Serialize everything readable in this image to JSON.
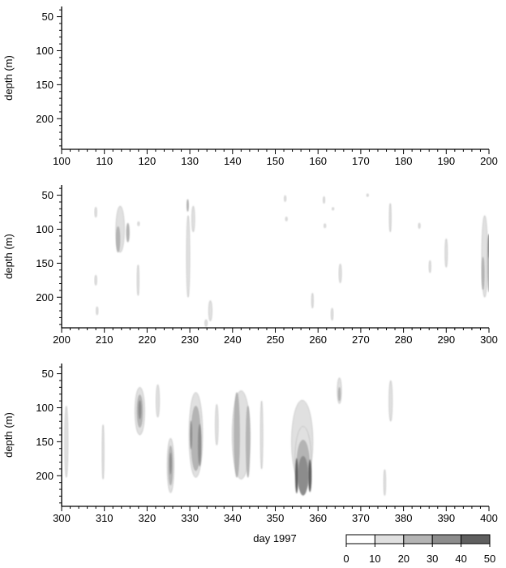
{
  "chart_data": {
    "type": "heatmap",
    "panels": [
      {
        "xlim": [
          100,
          200
        ],
        "xticks": [
          100,
          110,
          120,
          130,
          140,
          150,
          160,
          170,
          180,
          190,
          200
        ],
        "ylabel": "depth (m)",
        "ylim": [
          245,
          35
        ],
        "yticks": [
          50,
          100,
          150,
          200
        ],
        "blobs": []
      },
      {
        "xlim": [
          200,
          300
        ],
        "xticks": [
          200,
          210,
          220,
          230,
          240,
          250,
          260,
          270,
          280,
          290,
          300
        ],
        "ylabel": "depth (m)",
        "ylim": [
          245,
          35
        ],
        "yticks": [
          50,
          100,
          150,
          200
        ],
        "blobs": [
          {
            "x": 208.0,
            "y": 75,
            "w": 0.5,
            "h": 15,
            "v": 12
          },
          {
            "x": 208.0,
            "y": 175,
            "w": 0.5,
            "h": 15,
            "v": 12
          },
          {
            "x": 208.3,
            "y": 220,
            "w": 0.4,
            "h": 12,
            "v": 12
          },
          {
            "x": 213.7,
            "y": 100,
            "w": 2.0,
            "h": 68,
            "v": 15
          },
          {
            "x": 213.2,
            "y": 115,
            "w": 0.9,
            "h": 38,
            "v": 25
          },
          {
            "x": 215.5,
            "y": 105,
            "w": 0.7,
            "h": 28,
            "v": 25
          },
          {
            "x": 217.9,
            "y": 175,
            "w": 0.5,
            "h": 45,
            "v": 12
          },
          {
            "x": 218.0,
            "y": 92,
            "w": 0.3,
            "h": 6,
            "v": 12
          },
          {
            "x": 229.6,
            "y": 140,
            "w": 0.8,
            "h": 120,
            "v": 12
          },
          {
            "x": 229.5,
            "y": 65,
            "w": 0.4,
            "h": 18,
            "v": 25
          },
          {
            "x": 230.8,
            "y": 85,
            "w": 0.7,
            "h": 38,
            "v": 12
          },
          {
            "x": 234.8,
            "y": 220,
            "w": 0.8,
            "h": 30,
            "v": 12
          },
          {
            "x": 233.8,
            "y": 238,
            "w": 0.6,
            "h": 10,
            "v": 12
          },
          {
            "x": 252.3,
            "y": 55,
            "w": 0.4,
            "h": 9,
            "v": 12
          },
          {
            "x": 252.6,
            "y": 85,
            "w": 0.2,
            "h": 6,
            "v": 12
          },
          {
            "x": 258.7,
            "y": 205,
            "w": 0.4,
            "h": 22,
            "v": 12
          },
          {
            "x": 261.4,
            "y": 57,
            "w": 0.3,
            "h": 10,
            "v": 12
          },
          {
            "x": 261.6,
            "y": 95,
            "w": 0.2,
            "h": 6,
            "v": 12
          },
          {
            "x": 263.5,
            "y": 70,
            "w": 0.3,
            "h": 4,
            "v": 12
          },
          {
            "x": 263.3,
            "y": 225,
            "w": 0.5,
            "h": 18,
            "v": 12
          },
          {
            "x": 265.2,
            "y": 165,
            "w": 0.6,
            "h": 28,
            "v": 12
          },
          {
            "x": 271.6,
            "y": 50,
            "w": 0.2,
            "h": 4,
            "v": 12
          },
          {
            "x": 276.9,
            "y": 83,
            "w": 0.5,
            "h": 42,
            "v": 12
          },
          {
            "x": 283.7,
            "y": 95,
            "w": 0.2,
            "h": 8,
            "v": 12
          },
          {
            "x": 286.2,
            "y": 155,
            "w": 0.4,
            "h": 18,
            "v": 12
          },
          {
            "x": 290.0,
            "y": 135,
            "w": 0.6,
            "h": 42,
            "v": 12
          },
          {
            "x": 299.0,
            "y": 140,
            "w": 1.4,
            "h": 120,
            "v": 15
          },
          {
            "x": 298.6,
            "y": 165,
            "w": 0.6,
            "h": 48,
            "v": 25
          },
          {
            "x": 300.0,
            "y": 150,
            "w": 0.7,
            "h": 85,
            "v": 25
          },
          {
            "x": 300.0,
            "y": 125,
            "w": 0.4,
            "h": 35,
            "v": 35
          }
        ]
      },
      {
        "xlim": [
          300,
          400
        ],
        "xticks": [
          300,
          310,
          320,
          330,
          340,
          350,
          360,
          370,
          380,
          390,
          400
        ],
        "ylabel": "depth (m)",
        "ylim": [
          245,
          35
        ],
        "yticks": [
          50,
          100,
          150,
          200
        ],
        "blobs": [
          {
            "x": 301.1,
            "y": 150,
            "w": 0.8,
            "h": 105,
            "v": 12
          },
          {
            "x": 309.7,
            "y": 165,
            "w": 0.5,
            "h": 80,
            "v": 12
          },
          {
            "x": 318.3,
            "y": 105,
            "w": 2.3,
            "h": 70,
            "v": 15
          },
          {
            "x": 318.3,
            "y": 105,
            "w": 1.3,
            "h": 48,
            "v": 25
          },
          {
            "x": 318.3,
            "y": 103,
            "w": 0.7,
            "h": 28,
            "v": 35
          },
          {
            "x": 322.5,
            "y": 90,
            "w": 0.8,
            "h": 48,
            "v": 12
          },
          {
            "x": 325.5,
            "y": 185,
            "w": 1.6,
            "h": 80,
            "v": 15
          },
          {
            "x": 325.5,
            "y": 185,
            "w": 1.0,
            "h": 58,
            "v": 25
          },
          {
            "x": 325.5,
            "y": 182,
            "w": 0.5,
            "h": 32,
            "v": 35
          },
          {
            "x": 331.4,
            "y": 140,
            "w": 3.2,
            "h": 125,
            "v": 15
          },
          {
            "x": 331.4,
            "y": 145,
            "w": 2.2,
            "h": 95,
            "v": 25
          },
          {
            "x": 332.3,
            "y": 155,
            "w": 0.8,
            "h": 62,
            "v": 35
          },
          {
            "x": 330.3,
            "y": 140,
            "w": 0.5,
            "h": 42,
            "v": 35
          },
          {
            "x": 336.3,
            "y": 125,
            "w": 0.7,
            "h": 60,
            "v": 12
          },
          {
            "x": 342.0,
            "y": 140,
            "w": 4.2,
            "h": 130,
            "v": 15
          },
          {
            "x": 341.0,
            "y": 140,
            "w": 1.3,
            "h": 125,
            "v": 25
          },
          {
            "x": 343.6,
            "y": 150,
            "w": 0.9,
            "h": 105,
            "v": 25
          },
          {
            "x": 346.8,
            "y": 140,
            "w": 0.6,
            "h": 100,
            "v": 12
          },
          {
            "x": 356.3,
            "y": 150,
            "w": 5.0,
            "h": 122,
            "v": 12
          },
          {
            "x": 356.5,
            "y": 175,
            "w": 3.8,
            "h": 95,
            "v": 15
          },
          {
            "x": 356.5,
            "y": 185,
            "w": 3.0,
            "h": 75,
            "v": 25
          },
          {
            "x": 356.5,
            "y": 200,
            "w": 2.4,
            "h": 58,
            "v": 35
          },
          {
            "x": 355.0,
            "y": 200,
            "w": 0.7,
            "h": 52,
            "v": 45
          },
          {
            "x": 358.1,
            "y": 200,
            "w": 0.8,
            "h": 48,
            "v": 45
          },
          {
            "x": 365.0,
            "y": 75,
            "w": 1.0,
            "h": 38,
            "v": 15
          },
          {
            "x": 365.0,
            "y": 80,
            "w": 0.5,
            "h": 20,
            "v": 25
          },
          {
            "x": 377.0,
            "y": 90,
            "w": 0.8,
            "h": 60,
            "v": 12
          },
          {
            "x": 375.6,
            "y": 210,
            "w": 0.5,
            "h": 38,
            "v": 12
          }
        ]
      }
    ],
    "xlabel": "day 1997",
    "colorbar": {
      "levels": [
        0,
        10,
        20,
        30,
        40,
        50
      ],
      "colors": [
        "#ffffff",
        "#e0e0e0",
        "#b4b4b4",
        "#8c8c8c",
        "#5f5f5f",
        "#323232"
      ]
    },
    "grid": false
  }
}
